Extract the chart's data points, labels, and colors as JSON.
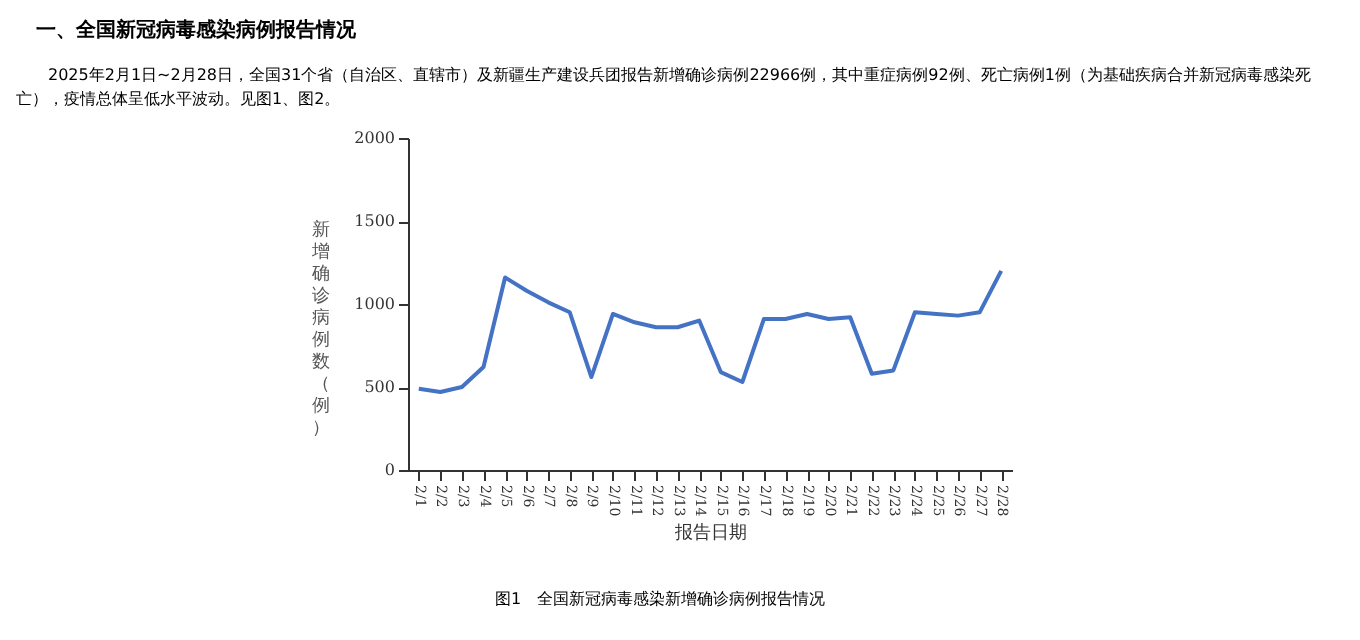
{
  "chart_data": {
    "type": "line",
    "title": "一、全国新冠病毒感染病例报告情况",
    "subtitle": "2025年2月1日~2月28日，全国31个省（自治区、直辖市）及新疆生产建设兵团报告新增确诊病例22966例，其中重症病例92例、死亡病例1例（为基础疾病合并新冠病毒感染死亡），疫情总体呈低水平波动。见图1、图2。",
    "xlabel": "报告日期",
    "ylabel": "新增确诊病例数（例）",
    "annotations": [
      "图1　全国新冠病毒感染新增确诊病例报告情况"
    ],
    "categories": [
      "2/1",
      "2/2",
      "2/3",
      "2/4",
      "2/5",
      "2/6",
      "2/7",
      "2/8",
      "2/9",
      "2/10",
      "2/11",
      "2/12",
      "2/13",
      "2/14",
      "2/15",
      "2/16",
      "2/17",
      "2/18",
      "2/19",
      "2/20",
      "2/21",
      "2/22",
      "2/23",
      "2/24",
      "2/25",
      "2/26",
      "2/27",
      "2/28"
    ],
    "series": [
      {
        "color": "#4472c4",
        "values": [
          490,
          470,
          500,
          620,
          1160,
          1080,
          1010,
          950,
          560,
          940,
          890,
          860,
          860,
          900,
          590,
          530,
          910,
          910,
          940,
          910,
          920,
          580,
          600,
          950,
          940,
          930,
          950,
          1200
        ]
      }
    ],
    "ylim": [
      0,
      2000
    ],
    "yticks": [
      0,
      500,
      1000,
      1500,
      2000
    ],
    "grid": false,
    "legend": false,
    "marker": "none",
    "line_style": "solid"
  }
}
